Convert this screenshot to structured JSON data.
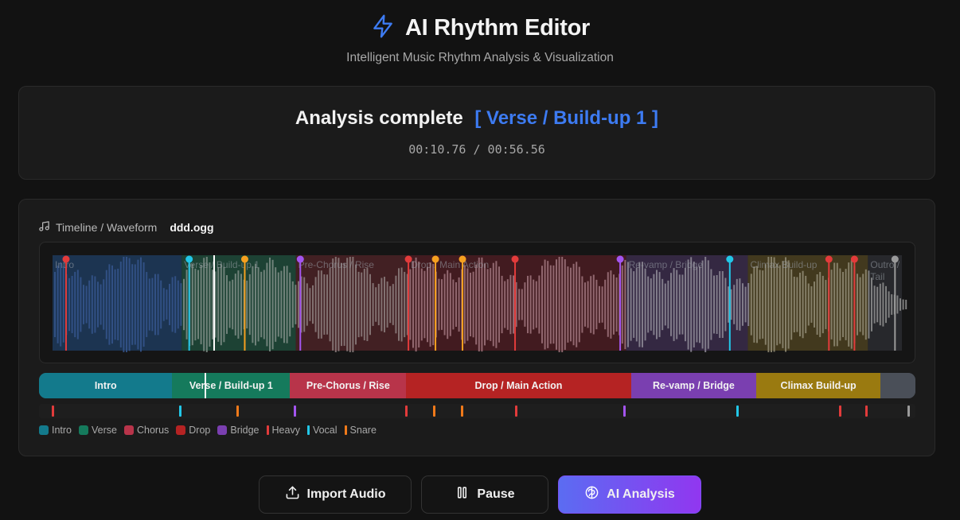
{
  "header": {
    "title": "AI Rhythm Editor",
    "subtitle": "Intelligent Music Rhythm Analysis & Visualization",
    "icon": "lightning-icon",
    "accent": "#3d7bf2"
  },
  "status": {
    "message": "Analysis complete",
    "current_section": "[ Verse / Build-up 1 ]",
    "time": "00:10.76 / 00:56.56"
  },
  "timeline": {
    "label": "Timeline / Waveform",
    "file_name": "ddd.ogg",
    "icon": "music-note-icon",
    "duration_s": 56.56,
    "position_s": 10.76,
    "wave_labels": [
      "Intro",
      "Verse / Build-up 1",
      "Pre-Chorus / Rise",
      "Drop / Main Action",
      "Re-vamp / Bridge",
      "Climax Build-up",
      "Outro / Tail"
    ],
    "sections": [
      {
        "label": "Intro",
        "start_s": 0,
        "end_s": 8.6,
        "color": "#137a8c",
        "tint": "#1d3a5c"
      },
      {
        "label": "Verse / Build-up 1",
        "start_s": 8.6,
        "end_s": 16.2,
        "color": "#157a5c",
        "tint": "#1f4a3a"
      },
      {
        "label": "Pre-Chorus / Rise",
        "start_s": 16.2,
        "end_s": 23.7,
        "color": "#b8344a",
        "tint": "#4a2226"
      },
      {
        "label": "Drop / Main Action",
        "start_s": 23.7,
        "end_s": 38.2,
        "color": "#b52323",
        "tint": "#4a1c22"
      },
      {
        "label": "Re-vamp / Bridge",
        "start_s": 38.2,
        "end_s": 46.3,
        "color": "#7a3fb0",
        "tint": "#3a2c4a"
      },
      {
        "label": "Climax Build-up",
        "start_s": 46.3,
        "end_s": 54.3,
        "color": "#9a7a10",
        "tint": "#4a4020"
      },
      {
        "label": "",
        "start_s": 54.3,
        "end_s": 56.56,
        "color": "#4a4f58",
        "tint": "#2a2c30"
      }
    ],
    "markers": [
      {
        "t": 0.9,
        "type": "heavy"
      },
      {
        "t": 9.1,
        "type": "vocal"
      },
      {
        "t": 12.8,
        "type": "snare"
      },
      {
        "t": 16.5,
        "type": "bridge"
      },
      {
        "t": 23.7,
        "type": "heavy"
      },
      {
        "t": 25.5,
        "type": "snare"
      },
      {
        "t": 27.3,
        "type": "snare"
      },
      {
        "t": 30.8,
        "type": "heavy"
      },
      {
        "t": 37.8,
        "type": "bridge"
      },
      {
        "t": 45.1,
        "type": "vocal"
      },
      {
        "t": 51.7,
        "type": "heavy"
      },
      {
        "t": 53.4,
        "type": "heavy"
      },
      {
        "t": 56.1,
        "type": "end"
      }
    ],
    "marker_colors": {
      "heavy": "#e23b3b",
      "vocal": "#22c7e8",
      "snare": "#f5a020",
      "bridge": "#a455f0",
      "end": "#9a9a9a"
    },
    "track_colors": {
      "heavy": "#e23b3b",
      "vocal": "#22c7e8",
      "snare": "#f07a1a",
      "bridge": "#a455f0",
      "end": "#9a9a9a"
    }
  },
  "legend": [
    {
      "label": "Intro",
      "color": "#137a8c",
      "kind": "box"
    },
    {
      "label": "Verse",
      "color": "#157a5c",
      "kind": "box"
    },
    {
      "label": "Chorus",
      "color": "#b8344a",
      "kind": "box"
    },
    {
      "label": "Drop",
      "color": "#b52323",
      "kind": "box"
    },
    {
      "label": "Bridge",
      "color": "#7a3fb0",
      "kind": "box"
    },
    {
      "label": "Heavy",
      "color": "#e23b3b",
      "kind": "line"
    },
    {
      "label": "Vocal",
      "color": "#22c7e8",
      "kind": "line"
    },
    {
      "label": "Snare",
      "color": "#f07a1a",
      "kind": "line"
    }
  ],
  "controls": {
    "import_label": "Import Audio",
    "pause_label": "Pause",
    "ai_label": "AI Analysis"
  }
}
